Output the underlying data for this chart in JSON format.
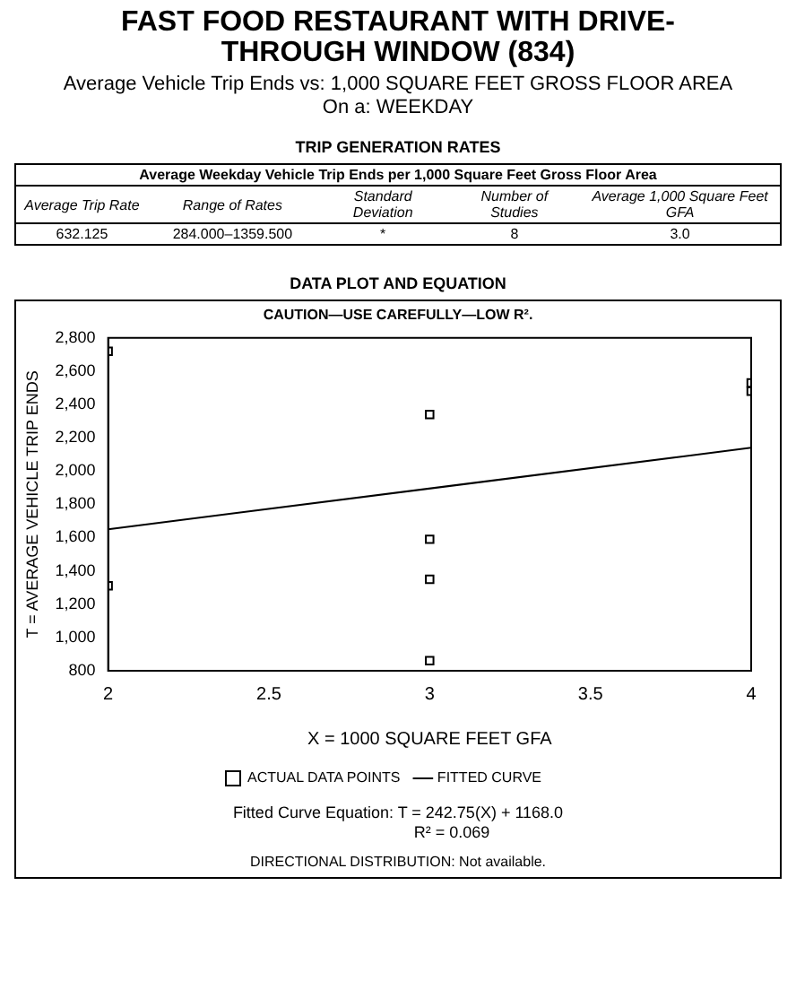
{
  "chart_data": {
    "type": "scatter",
    "title": "FAST FOOD RESTAURANT WITH DRIVE-THROUGH WINDOW (834)",
    "subtitle": "Average Vehicle Trip Ends vs: 1,000 SQUARE FEET GROSS FLOOR AREA\nOn a: WEEKDAY",
    "xlabel": "X = 1000 SQUARE FEET GFA",
    "ylabel": "T = AVERAGE VEHICLE TRIP ENDS",
    "annotations": [
      "TRIP GENERATION RATES",
      "Average Weekday Vehicle Trip Ends per 1,000 Square Feet Gross Floor Area",
      "Average Trip Rate",
      "Range of Rates",
      "Standard Deviation",
      "Number of Studies",
      "Average 1,000 Square Feet GFA",
      "632.125",
      "284.000–1359.500",
      "*",
      "8",
      "3.0",
      "DATA PLOT AND EQUATION",
      "CAUTION—USE CAREFULLY—LOW R².",
      "Fitted Curve Equation: T = 242.75(X) + 1168.0",
      "R² = 0.069",
      "DIRECTIONAL DISTRIBUTION: Not available."
    ],
    "series": [
      {
        "name": "ACTUAL DATA POINTS",
        "type": "scatter",
        "color": "#000000",
        "marker": "square",
        "x": [
          2,
          2,
          3,
          3,
          3,
          3,
          4,
          4
        ],
        "values": [
          2720,
          1310,
          2340,
          1590,
          1350,
          860,
          2530,
          2480
        ]
      },
      {
        "name": "FITTED CURVE",
        "type": "line",
        "color": "#000000",
        "marker": "none",
        "line_style": "solid",
        "x": [
          2,
          4
        ],
        "values": [
          1650,
          2140
        ]
      }
    ],
    "xlim": [
      2,
      4
    ],
    "xticks": [
      2,
      2.5,
      3,
      3.5,
      4
    ],
    "ylim": [
      800,
      2800
    ],
    "yticks": [
      800,
      {
        "value": 1000,
        "label": "1,000"
      },
      {
        "value": 1200,
        "label": "1,200"
      },
      {
        "value": 1400,
        "label": "1,400"
      },
      {
        "value": 1600,
        "label": "1,600"
      },
      {
        "value": 1800,
        "label": "1,800"
      },
      {
        "value": 2000,
        "label": "2,000"
      },
      {
        "value": 2200,
        "label": "2,200"
      },
      {
        "value": 2400,
        "label": "2,400"
      },
      {
        "value": 2600,
        "label": "2,600"
      },
      {
        "value": 2800,
        "label": "2,800"
      }
    ],
    "grid": false,
    "legend": "bottom"
  }
}
